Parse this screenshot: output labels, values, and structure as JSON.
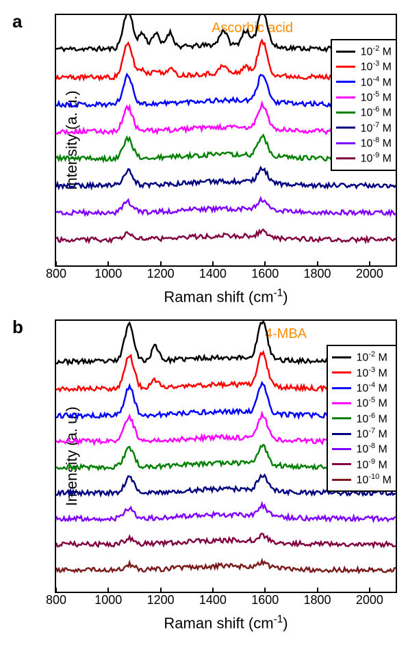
{
  "panelA": {
    "label": "a",
    "analyte": "Ascorbic acid",
    "ylabel": "Intensity (a. u.)",
    "xlabel_html": "Raman shift (cm<sup>-1</sup>)",
    "xlim": [
      800,
      2100
    ],
    "xticks": [
      800,
      1000,
      1200,
      1400,
      1600,
      1800,
      2000
    ],
    "series": [
      {
        "color": "#000000",
        "label_html": "10<sup>-2</sup> M",
        "offset": 320
      },
      {
        "color": "#ff0000",
        "label_html": "10<sup>-3</sup> M",
        "offset": 278
      },
      {
        "color": "#0000ff",
        "label_html": "10<sup>-4</sup> M",
        "offset": 238
      },
      {
        "color": "#ff00ff",
        "label_html": "10<sup>-5</sup> M",
        "offset": 198
      },
      {
        "color": "#008000",
        "label_html": "10<sup>-6</sup> M",
        "offset": 158
      },
      {
        "color": "#000080",
        "label_html": "10<sup>-7</sup> M",
        "offset": 118
      },
      {
        "color": "#8000ff",
        "label_html": "10<sup>-8</sup> M",
        "offset": 78
      },
      {
        "color": "#800040",
        "label_html": "10<sup>-9</sup> M",
        "offset": 38
      }
    ],
    "peaks": [
      1075,
      1590
    ],
    "minor_peaks_top": [
      1130,
      1180,
      1235,
      1440,
      1525
    ],
    "line_width": 2.5,
    "background": "#ffffff"
  },
  "panelB": {
    "label": "b",
    "analyte": "4-MBA",
    "ylabel": "Intensity (a. u.)",
    "xlabel_html": "Raman shift (cm<sup>-1</sup>)",
    "xlim": [
      800,
      2100
    ],
    "xticks": [
      800,
      1000,
      1200,
      1400,
      1600,
      1800,
      2000
    ],
    "series": [
      {
        "color": "#000000",
        "label_html": "10<sup>-2</sup> M",
        "offset": 340
      },
      {
        "color": "#ff0000",
        "label_html": "10<sup>-3</sup> M",
        "offset": 300
      },
      {
        "color": "#0000ff",
        "label_html": "10<sup>-4</sup> M",
        "offset": 260
      },
      {
        "color": "#ff00ff",
        "label_html": "10<sup>-5</sup> M",
        "offset": 222
      },
      {
        "color": "#008000",
        "label_html": "10<sup>-6</sup> M",
        "offset": 184
      },
      {
        "color": "#000080",
        "label_html": "10<sup>-7</sup> M",
        "offset": 146
      },
      {
        "color": "#8000ff",
        "label_html": "10<sup>-8</sup> M",
        "offset": 108
      },
      {
        "color": "#800040",
        "label_html": "10<sup>-9</sup> M",
        "offset": 70
      },
      {
        "color": "#7a1a1a",
        "label_html": "10<sup>-10</sup> M",
        "offset": 32
      }
    ],
    "peaks": [
      1080,
      1590
    ],
    "minor_peaks_top": [
      1180
    ],
    "line_width": 2.5,
    "background": "#ffffff"
  }
}
